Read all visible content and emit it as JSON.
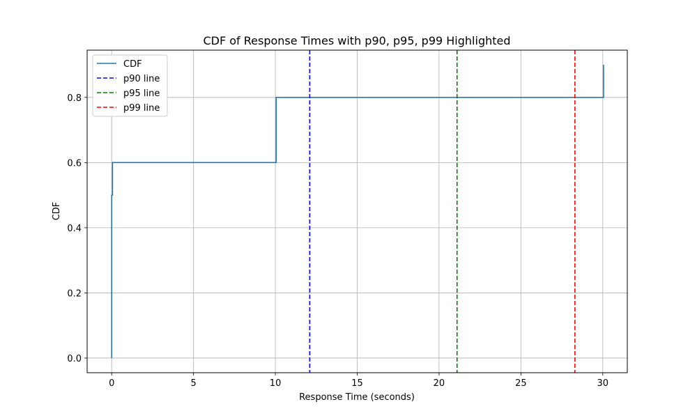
{
  "chart_data": {
    "type": "line",
    "title": "CDF of Response Times with p90, p95, p99 Highlighted",
    "xlabel": "Response Time (seconds)",
    "ylabel": "CDF",
    "xlim": [
      -1.5,
      31.5
    ],
    "ylim": [
      -0.045,
      0.945
    ],
    "xticks": [
      0,
      5,
      10,
      15,
      20,
      25,
      30
    ],
    "xtick_labels": [
      "0",
      "5",
      "10",
      "15",
      "20",
      "25",
      "30"
    ],
    "yticks": [
      0.0,
      0.2,
      0.4,
      0.6,
      0.8
    ],
    "ytick_labels": [
      "0.0",
      "0.2",
      "0.4",
      "0.6",
      "0.8"
    ],
    "grid": true,
    "legend_position": "top-left",
    "series": [
      {
        "name": "CDF",
        "style": "solid",
        "step": true,
        "color": "#1f77b4",
        "x": [
          0.0,
          0.0,
          0.05,
          10.0,
          10.05,
          30.0,
          30.05
        ],
        "y": [
          0.0,
          0.5,
          0.6,
          0.6,
          0.8,
          0.8,
          0.9
        ]
      }
    ],
    "vlines": [
      {
        "name": "p90 line",
        "x": 12.1,
        "color": "#0000ff",
        "style": "dashed"
      },
      {
        "name": "p95 line",
        "x": 21.1,
        "color": "#008000",
        "style": "dashed"
      },
      {
        "name": "p99 line",
        "x": 28.3,
        "color": "#ff0000",
        "style": "dashed"
      }
    ]
  }
}
